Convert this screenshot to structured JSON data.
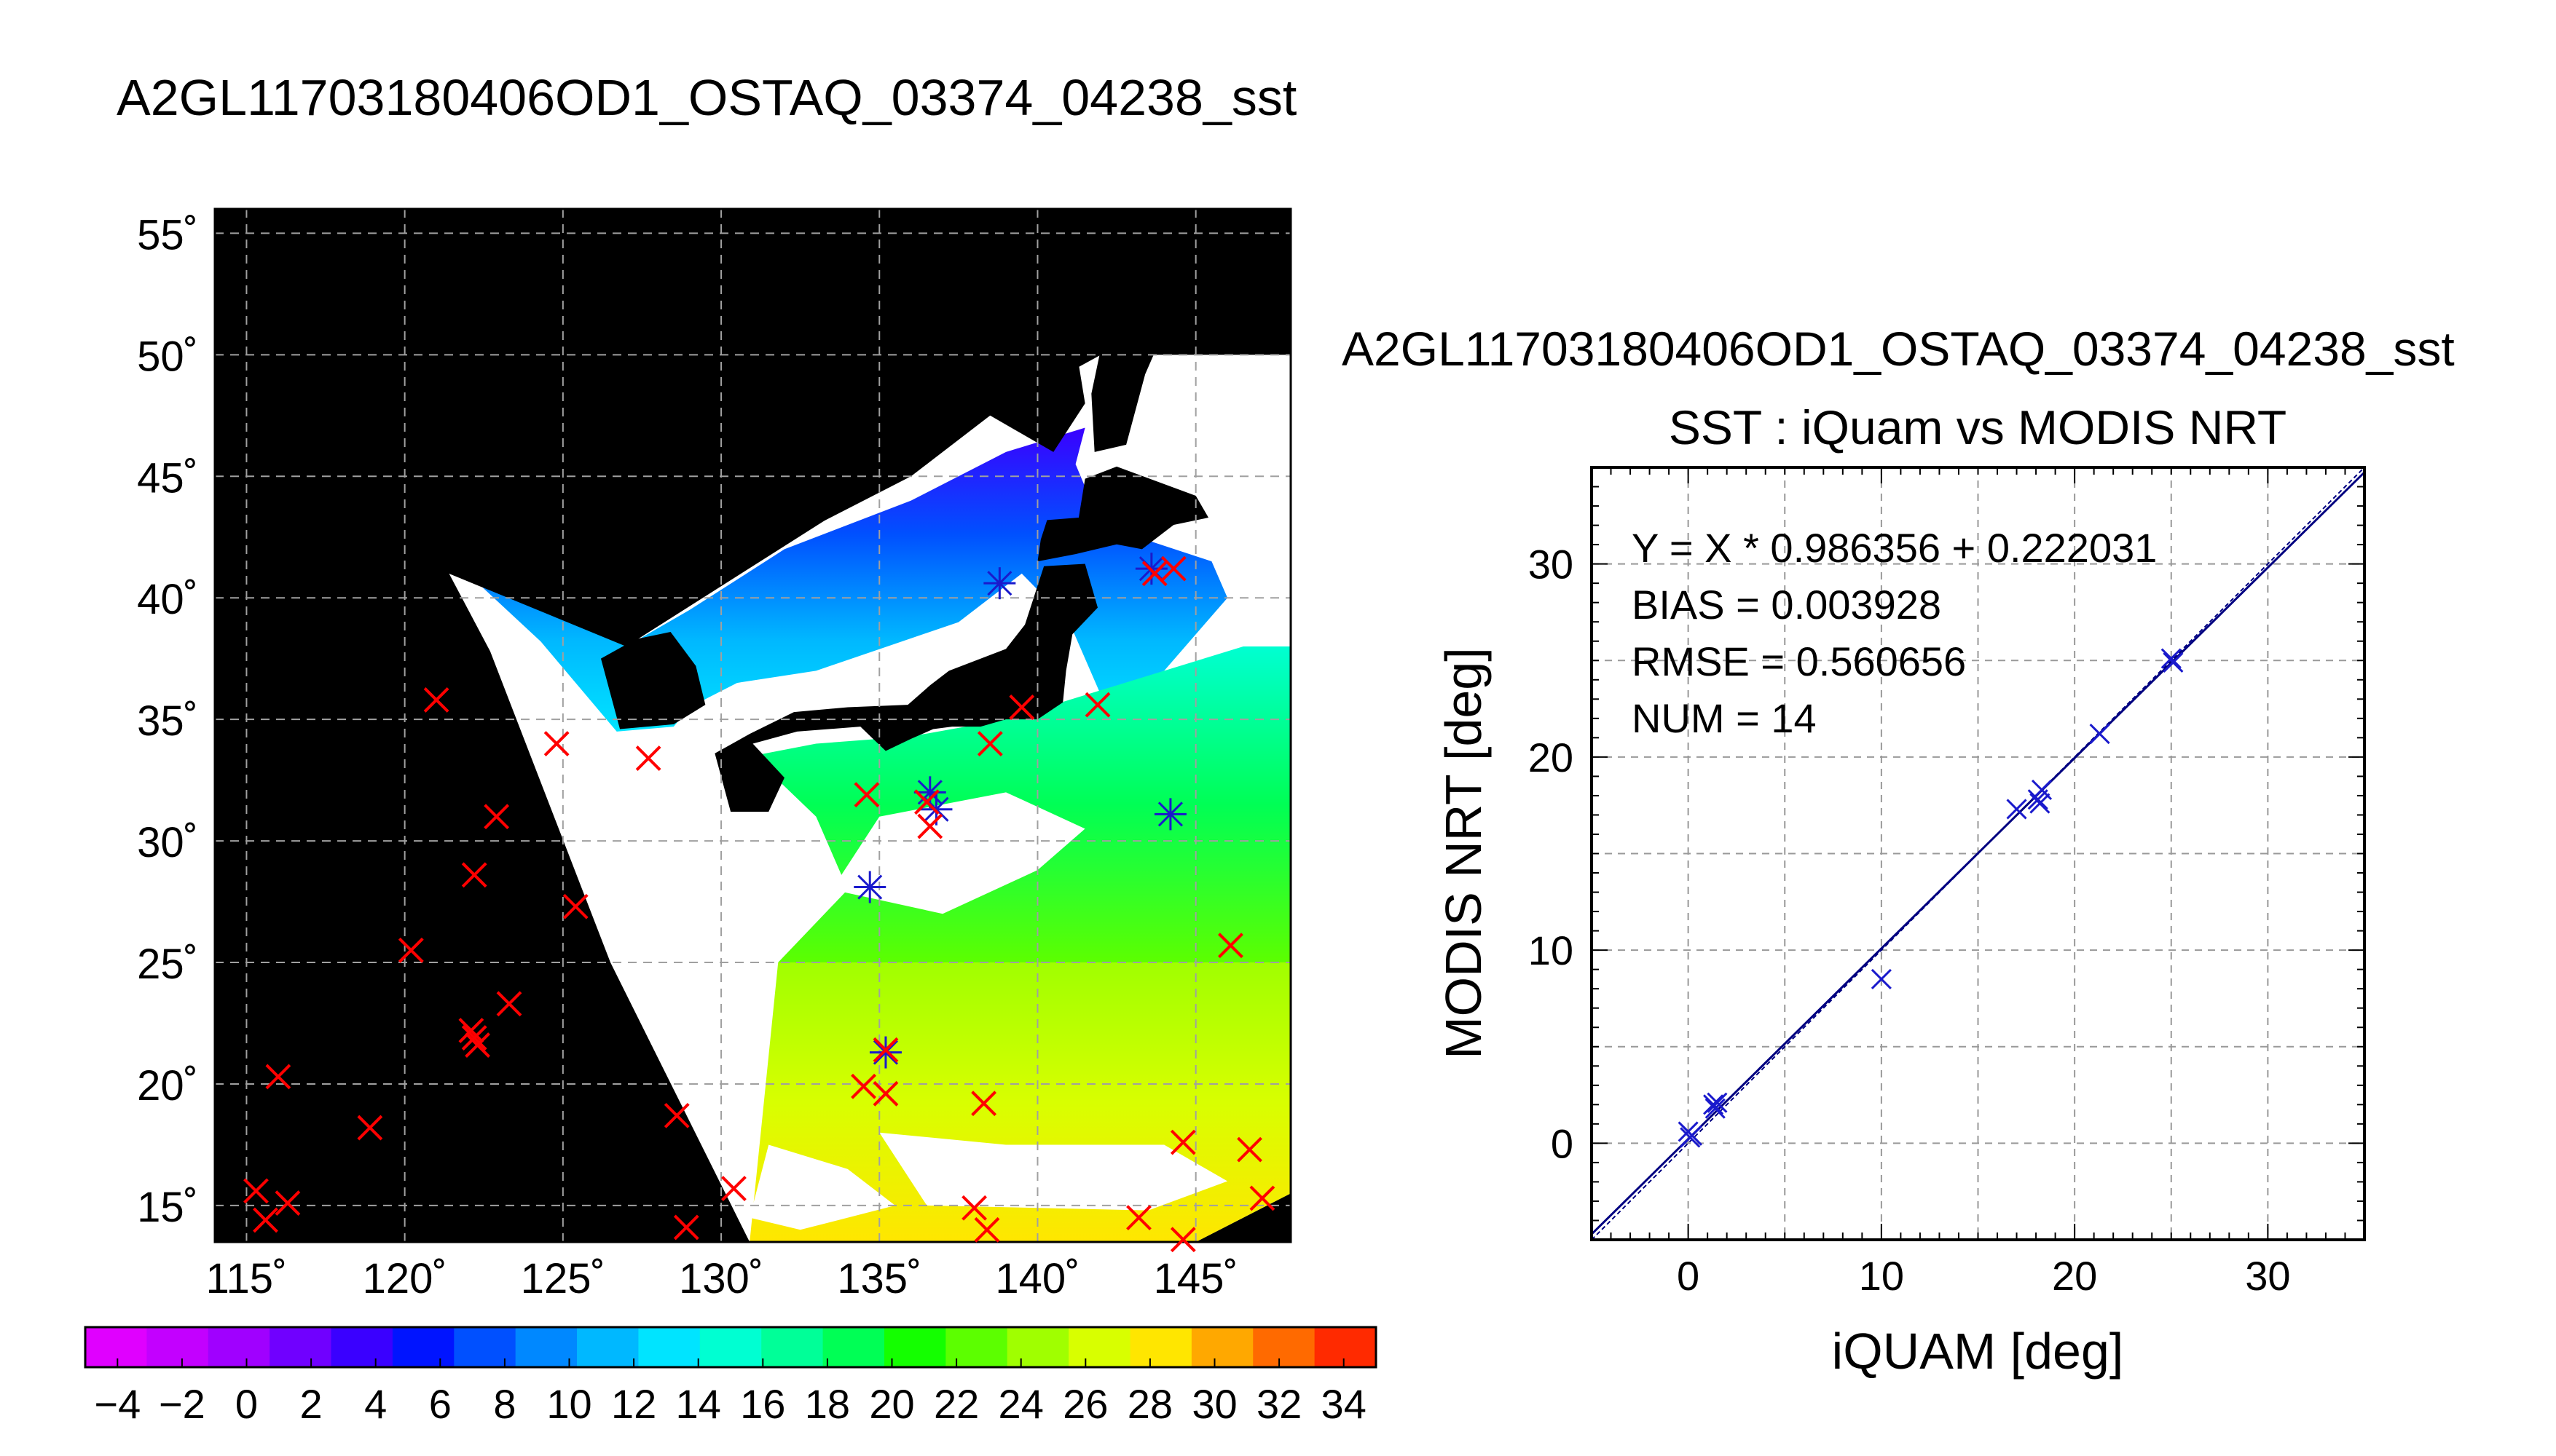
{
  "page_title": "A2GL11703180406OD1_OSTAQ_03374_04238_sst",
  "colors": {
    "land": "#000000",
    "cloud": "#ffffff",
    "grid": "#a0a0a0",
    "marker_map": "#ff0000",
    "marker_match": "#1a1acc",
    "scatter_marker": "#1a1acc",
    "fit_line": "#000080"
  },
  "chart_data": [
    {
      "type": "map",
      "name": "sst-map",
      "xlim": [
        114,
        148
      ],
      "ylim": [
        13.5,
        56
      ],
      "lon_ticks": [
        115,
        120,
        125,
        130,
        135,
        140,
        145
      ],
      "lon_tick_labels": [
        "115˚",
        "120˚",
        "125˚",
        "130˚",
        "135˚",
        "140˚",
        "145˚"
      ],
      "lat_ticks": [
        15,
        20,
        25,
        30,
        35,
        40,
        45,
        50,
        55
      ],
      "lat_tick_labels": [
        "15˚",
        "20˚",
        "25˚",
        "30˚",
        "35˚",
        "40˚",
        "45˚",
        "50˚",
        "55˚"
      ],
      "grid": true,
      "swath_outline": [
        [
          121.4,
          41
        ],
        [
          127,
          38
        ],
        [
          138.5,
          47.5
        ],
        [
          142,
          50
        ],
        [
          148,
          50
        ],
        [
          148,
          15.5
        ],
        [
          145,
          13.5
        ],
        [
          130.9,
          13.5
        ],
        [
          126.5,
          25
        ],
        [
          122.7,
          37.8
        ]
      ],
      "red_x_markers": [
        [
          121,
          35.8
        ],
        [
          124.8,
          34
        ],
        [
          127.7,
          33.4
        ],
        [
          122.9,
          31
        ],
        [
          122.2,
          28.6
        ],
        [
          125.4,
          27.3
        ],
        [
          120.2,
          25.5
        ],
        [
          123.3,
          23.3
        ],
        [
          122.1,
          22.2
        ],
        [
          122.2,
          21.9
        ],
        [
          122.3,
          21.6
        ],
        [
          116,
          20.3
        ],
        [
          118.9,
          18.2
        ],
        [
          115.3,
          15.6
        ],
        [
          115.6,
          14.4
        ],
        [
          116.3,
          15.1
        ],
        [
          128.6,
          18.7
        ],
        [
          128.9,
          14.1
        ],
        [
          130.4,
          15.7
        ],
        [
          134.6,
          31.9
        ],
        [
          136.5,
          31.6
        ],
        [
          136.6,
          30.6
        ],
        [
          135.2,
          21.4
        ],
        [
          134.5,
          19.9
        ],
        [
          135.2,
          19.6
        ],
        [
          138.3,
          19.2
        ],
        [
          138,
          14.9
        ],
        [
          138.4,
          14
        ],
        [
          141.9,
          35.6
        ],
        [
          139.5,
          35.5
        ],
        [
          138.5,
          34
        ],
        [
          143.7,
          41
        ],
        [
          144.3,
          41.2
        ],
        [
          146.1,
          25.7
        ],
        [
          144.6,
          17.6
        ],
        [
          146.7,
          17.3
        ],
        [
          147.1,
          15.3
        ],
        [
          143.2,
          14.5
        ],
        [
          144.6,
          13.6
        ]
      ],
      "blue_star_markers": [
        [
          136.6,
          32
        ],
        [
          136.8,
          31.3
        ],
        [
          134.7,
          28.1
        ],
        [
          135.2,
          21.3
        ],
        [
          138.8,
          40.6
        ],
        [
          143.6,
          41.2
        ],
        [
          144.2,
          31.1
        ]
      ],
      "colorbar": {
        "min": -5,
        "max": 35,
        "step": 2,
        "tick_labels": [
          "−4",
          "−2",
          "0",
          "2",
          "4",
          "6",
          "8",
          "10",
          "12",
          "14",
          "16",
          "18",
          "20",
          "22",
          "24",
          "26",
          "28",
          "30",
          "32",
          "34"
        ],
        "colors": [
          "#e000ff",
          "#c300ff",
          "#a000ff",
          "#7000ff",
          "#3a00ff",
          "#0014ff",
          "#0050ff",
          "#0088ff",
          "#00b8ff",
          "#00e4ff",
          "#00ffd2",
          "#00ff98",
          "#00ff55",
          "#14ff00",
          "#5cff00",
          "#a0ff00",
          "#d8ff00",
          "#ffe600",
          "#ffa800",
          "#ff6a00",
          "#ff2a00"
        ]
      }
    },
    {
      "type": "scatter",
      "name": "sst-scatter",
      "title": "A2GL11703180406OD1_OSTAQ_03374_04238_sst",
      "subtitle": "SST : iQuam vs MODIS NRT",
      "xlabel": "iQUAM [deg]",
      "ylabel": "MODIS NRT [deg]",
      "xlim": [
        -5,
        35
      ],
      "ylim": [
        -5,
        35
      ],
      "x_ticks": [
        0,
        10,
        20,
        30
      ],
      "y_ticks": [
        0,
        10,
        20,
        30
      ],
      "grid": true,
      "annotations": [
        "Y = X * 0.986356 + 0.222031",
        "BIAS = 0.003928",
        "RMSE = 0.560656",
        "NUM = 14"
      ],
      "fit": {
        "slope": 0.986356,
        "intercept": 0.222031
      },
      "points": [
        {
          "x": 0.0,
          "y": 0.6
        },
        {
          "x": 0.1,
          "y": 0.3
        },
        {
          "x": 1.3,
          "y": 2.0
        },
        {
          "x": 1.4,
          "y": 1.8
        },
        {
          "x": 10.0,
          "y": 8.5
        },
        {
          "x": 17.0,
          "y": 17.3
        },
        {
          "x": 18.1,
          "y": 17.8
        },
        {
          "x": 18.3,
          "y": 18.3
        },
        {
          "x": 18.2,
          "y": 17.6
        },
        {
          "x": 21.3,
          "y": 21.2
        },
        {
          "x": 25.0,
          "y": 25.1
        },
        {
          "x": 25.1,
          "y": 24.9
        },
        {
          "x": 0.2,
          "y": 0.4
        },
        {
          "x": 1.5,
          "y": 2.1
        }
      ]
    }
  ]
}
